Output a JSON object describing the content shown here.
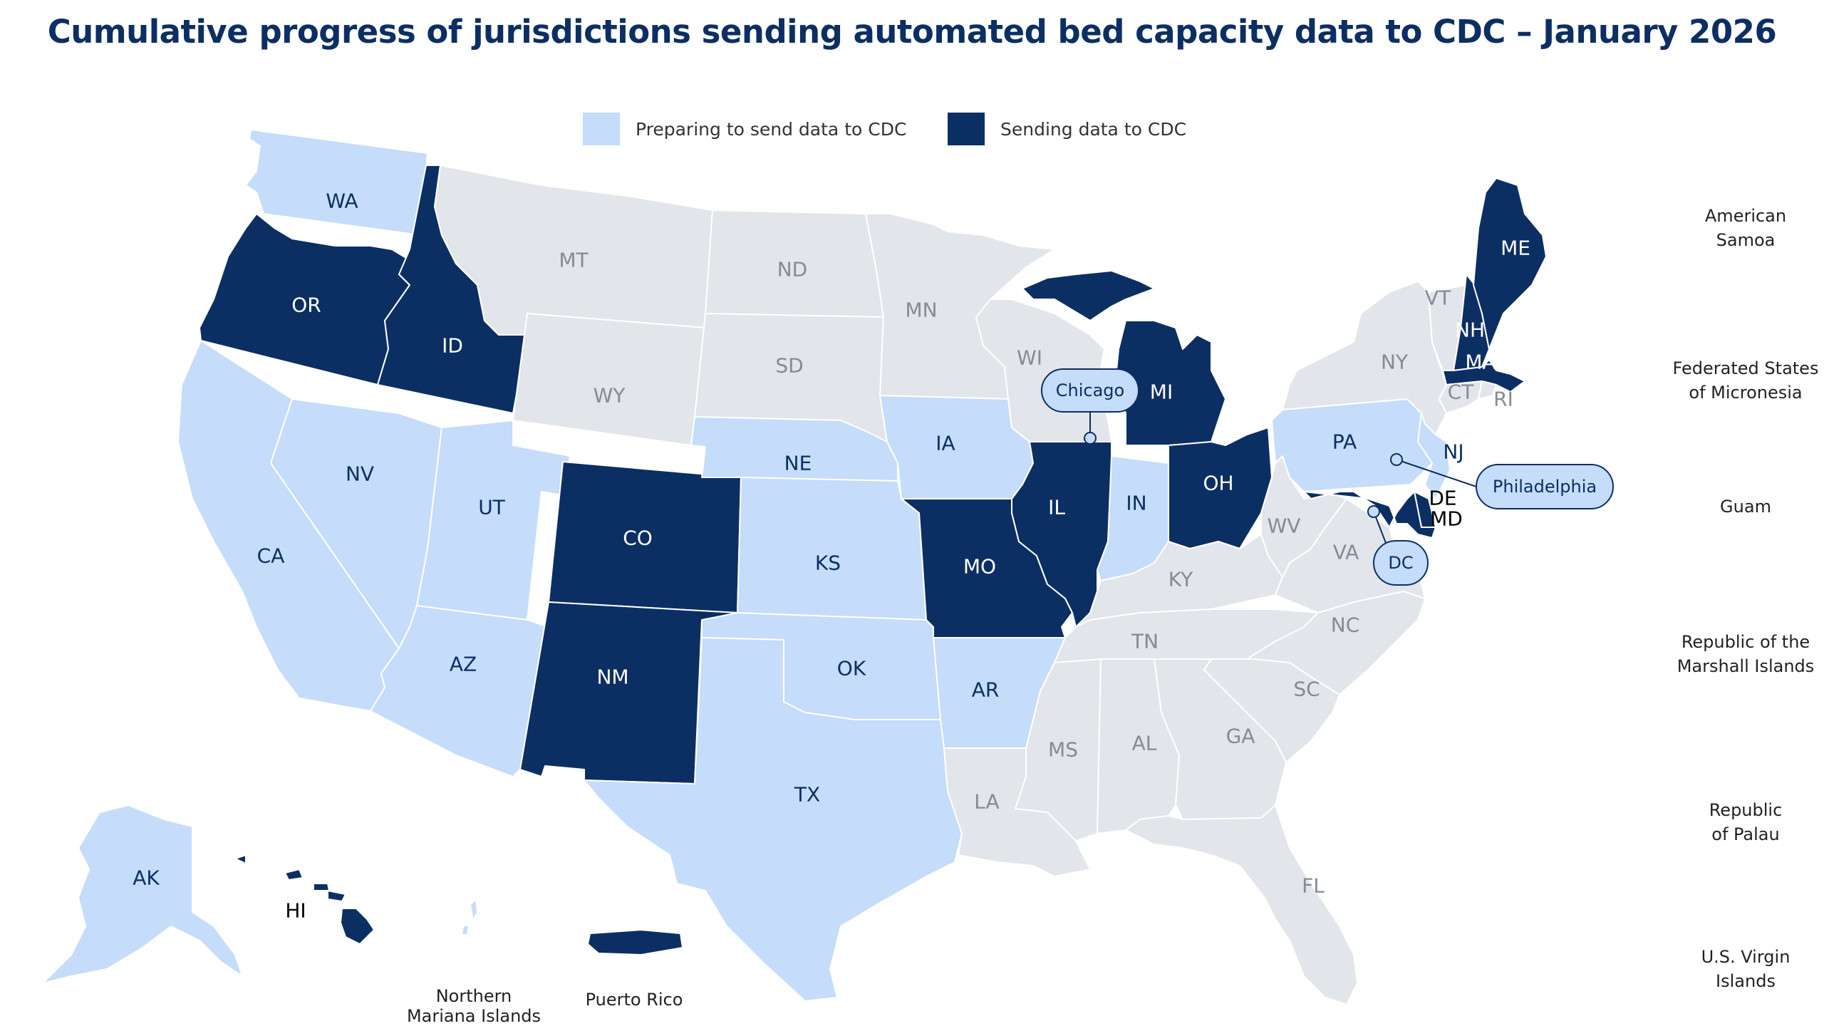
{
  "title": "Cumulative progress of jurisdictions sending automated bed capacity data to CDC – January 2026",
  "legend": {
    "preparing": {
      "label": "Preparing to send data to CDC",
      "color": "#c5dcfa"
    },
    "sending": {
      "label": "Sending data to CDC",
      "color": "#0c2f63"
    },
    "none_color": "#e2e5e9"
  },
  "states": {
    "WA": "preparing",
    "OR": "sending",
    "CA": "preparing",
    "ID": "sending",
    "NV": "preparing",
    "MT": "none",
    "WY": "none",
    "UT": "preparing",
    "AZ": "preparing",
    "CO": "sending",
    "NM": "sending",
    "ND": "none",
    "SD": "none",
    "NE": "preparing",
    "KS": "preparing",
    "OK": "preparing",
    "TX": "preparing",
    "MN": "none",
    "IA": "preparing",
    "MO": "sending",
    "AR": "preparing",
    "LA": "none",
    "WI": "none",
    "IL": "sending",
    "MI": "sending",
    "IN": "preparing",
    "OH": "sending",
    "KY": "none",
    "TN": "none",
    "MS": "none",
    "AL": "none",
    "GA": "none",
    "FL": "none",
    "SC": "none",
    "NC": "none",
    "VA": "none",
    "WV": "none",
    "PA": "preparing",
    "NY": "none",
    "VT": "none",
    "NH": "sending",
    "ME": "sending",
    "MA": "sending",
    "CT": "none",
    "RI": "none",
    "NJ": "preparing",
    "DE": "sending",
    "MD": "sending",
    "AK": "preparing",
    "HI": "sending",
    "PR": "sending",
    "MP": "preparing"
  },
  "state_labels": [
    "WA",
    "OR",
    "CA",
    "ID",
    "NV",
    "MT",
    "WY",
    "UT",
    "AZ",
    "CO",
    "NM",
    "ND",
    "SD",
    "NE",
    "KS",
    "OK",
    "TX",
    "MN",
    "IA",
    "MO",
    "AR",
    "LA",
    "WI",
    "IL",
    "MI",
    "IN",
    "OH",
    "KY",
    "TN",
    "MS",
    "AL",
    "GA",
    "FL",
    "SC",
    "NC",
    "VA",
    "WV",
    "PA",
    "NY",
    "VT",
    "NH",
    "ME",
    "MA",
    "CT",
    "RI",
    "NJ",
    "DE",
    "MD",
    "AK",
    "HI"
  ],
  "callouts": {
    "chicago": "Chicago",
    "philadelphia": "Philadelphia",
    "dc": "DC"
  },
  "territories": {
    "american_samoa": "American\nSamoa",
    "micronesia": "Federated States\nof Micronesia",
    "guam": "Guam",
    "marshall": "Republic of the\nMarshall Islands",
    "palau": "Republic\nof Palau",
    "usvi": "U.S. Virgin\nIslands",
    "northern_mariana": "Northern\nMariana Islands",
    "puerto_rico": "Puerto Rico"
  }
}
